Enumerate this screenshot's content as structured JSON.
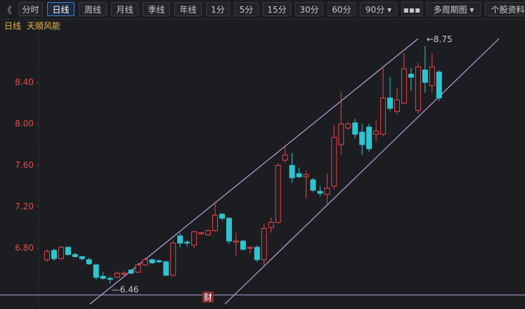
{
  "toolbar": {
    "back": "《",
    "buttons": [
      "分时",
      "日线",
      "周线",
      "月线",
      "季线",
      "年线",
      "1分",
      "5分",
      "15分",
      "30分",
      "60分",
      "90分 ▾",
      "▪▪▪",
      "多周期图 ▾",
      "个股资料"
    ],
    "active": 1
  },
  "header": {
    "period": "日线",
    "stock": "天顺风能"
  },
  "badge": "财",
  "chart_data": {
    "type": "candlestick",
    "up_color": "#e8454a",
    "down_color": "#2ec5d3",
    "ylim": [
      6.35,
      8.89
    ],
    "yticks": [
      {
        "value": 6.8,
        "label": "6.80"
      },
      {
        "value": 7.2,
        "label": "7.20"
      },
      {
        "value": 7.6,
        "label": "7.60"
      },
      {
        "value": 8.0,
        "label": "8.00"
      },
      {
        "value": 8.4,
        "label": "8.40"
      }
    ],
    "open": [
      6.69,
      6.78,
      6.7,
      6.81,
      6.74,
      6.72,
      6.69,
      6.64,
      6.53,
      6.51,
      6.52,
      6.55,
      6.59,
      6.57,
      6.64,
      6.69,
      6.68,
      6.67,
      6.54,
      6.92,
      6.86,
      6.83,
      6.94,
      6.93,
      6.97,
      7.13,
      7.09,
      6.86,
      6.87,
      6.8,
      6.81,
      6.69,
      7.0,
      7.05,
      7.65,
      7.6,
      7.52,
      7.49,
      7.46,
      7.35,
      7.32,
      7.4,
      7.8,
      7.96,
      8.01,
      7.92,
      7.97,
      7.9,
      7.9,
      8.25,
      8.12,
      8.2,
      8.48,
      8.13,
      8.52,
      8.37,
      8.5
    ],
    "high": [
      6.79,
      6.8,
      6.82,
      6.82,
      6.76,
      6.73,
      6.71,
      6.65,
      6.57,
      6.53,
      6.58,
      6.58,
      6.6,
      6.66,
      6.71,
      6.7,
      6.69,
      6.68,
      6.87,
      6.95,
      6.88,
      6.97,
      6.96,
      6.98,
      7.25,
      7.14,
      7.1,
      6.95,
      6.88,
      6.82,
      6.83,
      7.04,
      7.1,
      7.62,
      7.78,
      7.72,
      7.58,
      7.55,
      7.48,
      7.4,
      7.52,
      7.99,
      8.31,
      8.02,
      8.05,
      8.0,
      8.0,
      8.03,
      8.55,
      8.45,
      8.35,
      8.68,
      8.54,
      8.59,
      8.75,
      8.68,
      8.52
    ],
    "low": [
      6.67,
      6.68,
      6.69,
      6.73,
      6.71,
      6.68,
      6.64,
      6.5,
      6.5,
      6.46,
      6.51,
      6.53,
      6.55,
      6.56,
      6.63,
      6.65,
      6.66,
      6.53,
      6.53,
      6.81,
      6.82,
      6.8,
      6.93,
      6.92,
      6.96,
      7.07,
      6.84,
      6.73,
      6.78,
      6.75,
      6.67,
      6.63,
      6.95,
      7.04,
      7.63,
      7.43,
      7.48,
      7.28,
      7.34,
      7.3,
      7.23,
      7.37,
      7.7,
      7.94,
      7.86,
      7.7,
      7.73,
      7.83,
      7.88,
      8.12,
      8.09,
      8.19,
      8.32,
      8.1,
      8.3,
      8.3,
      8.22
    ],
    "close": [
      6.77,
      6.7,
      6.81,
      6.74,
      6.72,
      6.7,
      6.65,
      6.52,
      6.51,
      6.5,
      6.56,
      6.56,
      6.56,
      6.64,
      6.69,
      6.66,
      6.67,
      6.54,
      6.85,
      6.85,
      6.85,
      6.96,
      6.95,
      6.97,
      7.12,
      7.09,
      6.87,
      6.87,
      6.79,
      6.81,
      6.69,
      6.99,
      7.05,
      7.6,
      7.7,
      7.48,
      7.49,
      7.51,
      7.36,
      7.33,
      7.38,
      7.87,
      8.0,
      8.0,
      7.9,
      7.8,
      7.76,
      7.93,
      8.25,
      8.15,
      8.23,
      8.53,
      8.45,
      8.55,
      8.4,
      8.55,
      8.25
    ],
    "annotations": [
      {
        "text": "←8.75",
        "index": 54,
        "value": 8.75,
        "on": "high"
      },
      {
        "text": "—6.46",
        "index": 9,
        "value": 6.46,
        "on": "low"
      }
    ]
  }
}
